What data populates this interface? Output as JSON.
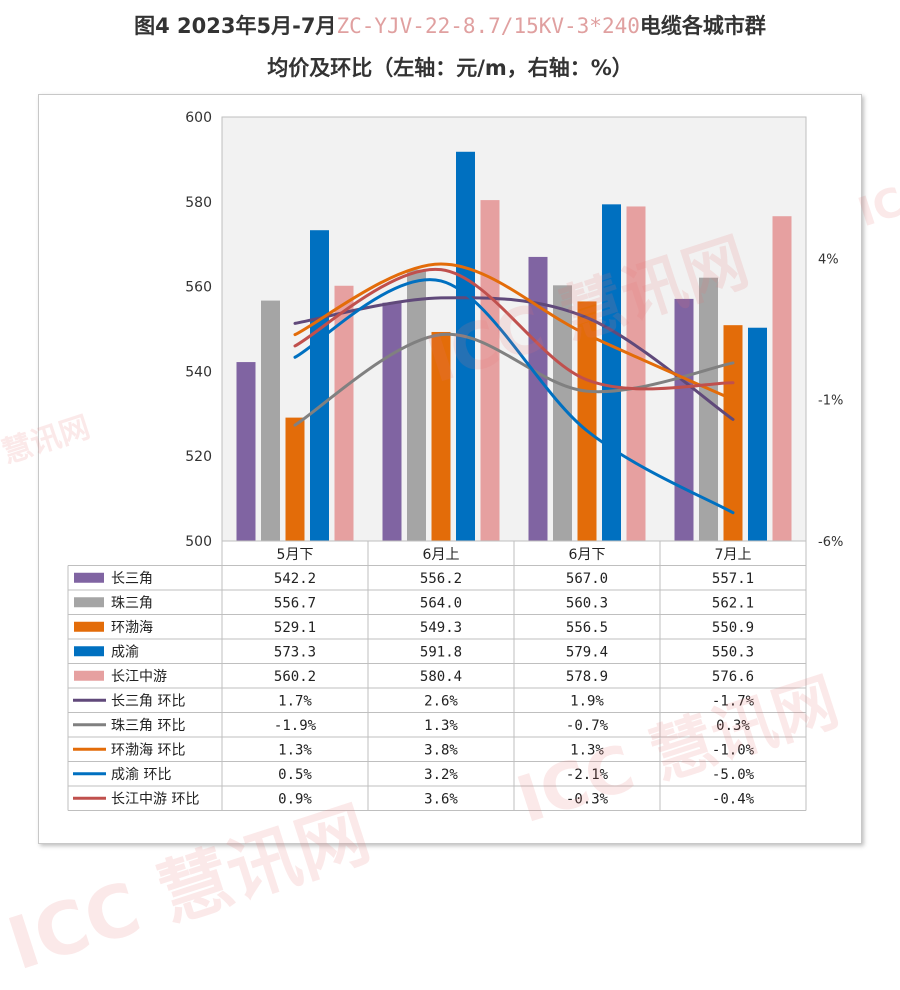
{
  "title": {
    "prefix": "图4 2023年5月-7月",
    "code": "ZC-YJV-22-8.7/15KV-3*240",
    "suffix": "电缆各城市群",
    "line2": "均价及环比（左轴：元/m，右轴：%）"
  },
  "watermark": {
    "brand": "ICC",
    "cn": "慧讯网"
  },
  "chart_data": {
    "type": "bar",
    "categories": [
      "5月下",
      "6月上",
      "6月下",
      "7月上"
    ],
    "left_axis": {
      "min": 500,
      "max": 600,
      "ticks": [
        500,
        520,
        540,
        560,
        580,
        600
      ]
    },
    "right_axis": {
      "min": -6,
      "max": 9,
      "ticks": [
        -6,
        -1,
        4
      ],
      "tick_labels": [
        "-6%",
        "-1%",
        "4%"
      ]
    },
    "grid": false,
    "legend_placement": "table-bottom",
    "bar_series": [
      {
        "name": "长三角",
        "color": "#8064a2",
        "values": [
          542.2,
          556.2,
          567.0,
          557.1
        ],
        "labels": [
          "542.2",
          "556.2",
          "567.0",
          "557.1"
        ]
      },
      {
        "name": "珠三角",
        "color": "#a5a5a5",
        "values": [
          556.7,
          564.0,
          560.3,
          562.1
        ],
        "labels": [
          "556.7",
          "564.0",
          "560.3",
          "562.1"
        ]
      },
      {
        "name": "环渤海",
        "color": "#e36c09",
        "values": [
          529.1,
          549.3,
          556.5,
          550.9
        ],
        "labels": [
          "529.1",
          "549.3",
          "556.5",
          "550.9"
        ]
      },
      {
        "name": "成渝",
        "color": "#0070c0",
        "values": [
          573.3,
          591.8,
          579.4,
          550.3
        ],
        "labels": [
          "573.3",
          "591.8",
          "579.4",
          "550.3"
        ]
      },
      {
        "name": "长江中游",
        "color": "#e6a0a0",
        "values": [
          560.2,
          580.4,
          578.9,
          576.6
        ],
        "labels": [
          "560.2",
          "580.4",
          "578.9",
          "576.6"
        ]
      }
    ],
    "line_series": [
      {
        "name": "长三角 环比",
        "color": "#60497a",
        "values": [
          1.7,
          2.6,
          1.9,
          -1.7
        ],
        "labels": [
          "1.7%",
          "2.6%",
          "1.9%",
          "-1.7%"
        ]
      },
      {
        "name": "珠三角 环比",
        "color": "#808080",
        "values": [
          -1.9,
          1.3,
          -0.7,
          0.3
        ],
        "labels": [
          "-1.9%",
          "1.3%",
          "-0.7%",
          "0.3%"
        ]
      },
      {
        "name": "环渤海 环比",
        "color": "#e36c09",
        "values": [
          1.3,
          3.8,
          1.3,
          -1.0
        ],
        "labels": [
          "1.3%",
          "3.8%",
          "1.3%",
          "-1.0%"
        ]
      },
      {
        "name": "成渝 环比",
        "color": "#0070c0",
        "values": [
          0.5,
          3.2,
          -2.1,
          -5.0
        ],
        "labels": [
          "0.5%",
          "3.2%",
          "-2.1%",
          "-5.0%"
        ]
      },
      {
        "name": "长江中游 环比",
        "color": "#c0504d",
        "values": [
          0.9,
          3.6,
          -0.3,
          -0.4
        ],
        "labels": [
          "0.9%",
          "3.6%",
          "-0.3%",
          "-0.4%"
        ]
      }
    ]
  }
}
